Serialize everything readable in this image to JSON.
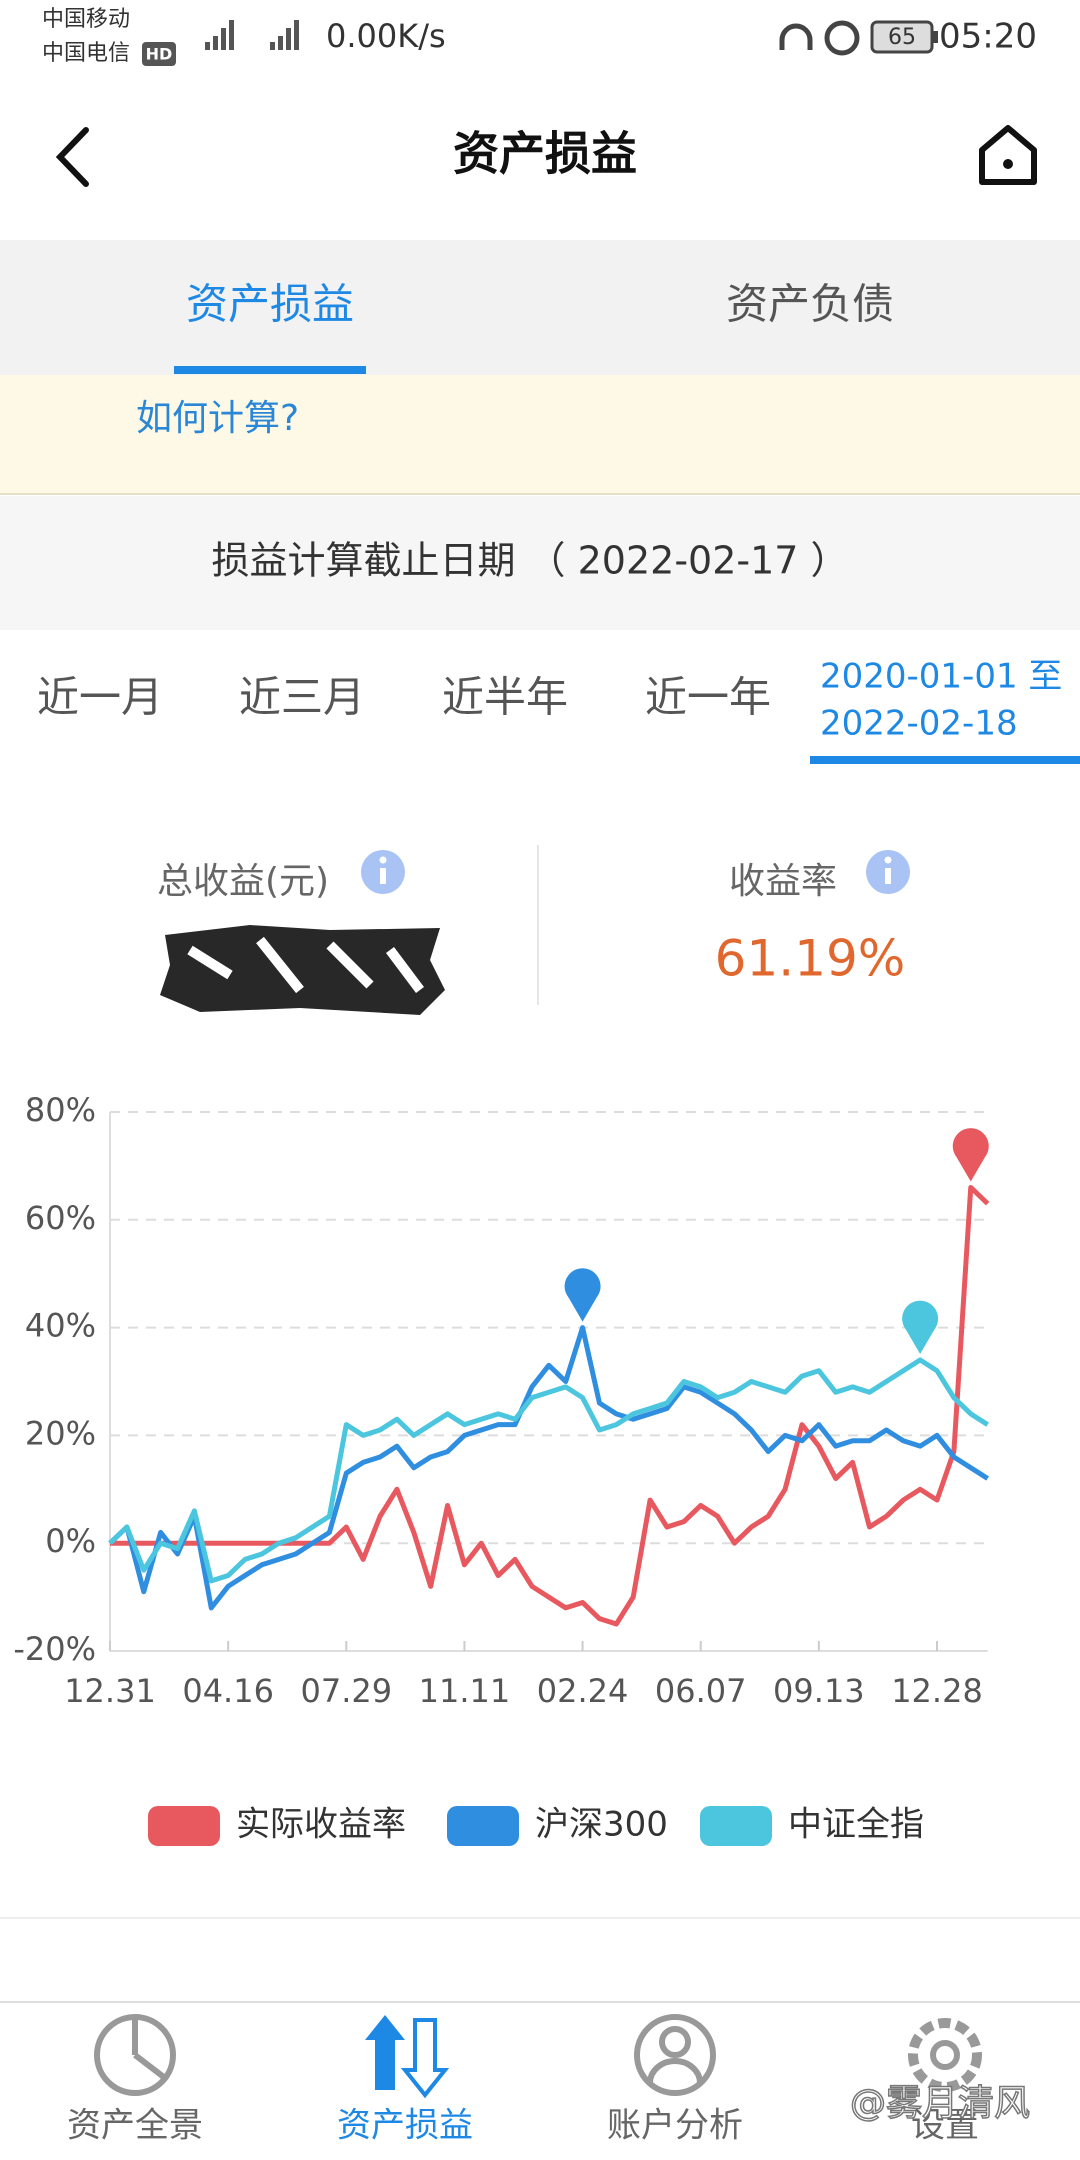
{
  "status_bar": {
    "carrier1": "中国移动",
    "carrier2": "中国电信",
    "hd": "HD",
    "speed": "0.00K/s",
    "battery": "65",
    "time": "05:20"
  },
  "header": {
    "title": "资产损益"
  },
  "tabs": [
    "资产损益",
    "资产负债"
  ],
  "notice": {
    "link": "如何计算?"
  },
  "cutoff": "损益计算截止日期 （ 2022-02-17 ）",
  "periods": [
    "近一月",
    "近三月",
    "近半年",
    "近一年"
  ],
  "custom_period": {
    "start": "2020-01-01 至",
    "end": "2022-02-18"
  },
  "stats": {
    "total_label": "总收益(元)",
    "rate_label": "收益率",
    "rate_value": "61.19%"
  },
  "chart_data": {
    "type": "line",
    "categories": [
      "12.31",
      null,
      null,
      null,
      null,
      null,
      null,
      "04.16",
      null,
      null,
      null,
      null,
      null,
      null,
      "07.29",
      null,
      null,
      null,
      null,
      null,
      null,
      "11.11",
      null,
      null,
      null,
      null,
      null,
      null,
      "02.24",
      null,
      null,
      null,
      null,
      null,
      null,
      "06.07",
      null,
      null,
      null,
      null,
      null,
      null,
      "09.13",
      null,
      null,
      null,
      null,
      null,
      null,
      "12.28",
      null,
      null,
      null
    ],
    "series": [
      {
        "name": "实际收益率",
        "color": "#e8585f",
        "values": [
          0,
          0,
          0,
          0,
          0,
          0,
          0,
          0,
          0,
          0,
          0,
          0,
          0,
          0,
          3,
          -3,
          5,
          10,
          2,
          -8,
          7,
          -4,
          0,
          -6,
          -3,
          -8,
          -10,
          -12,
          -11,
          -14,
          -15,
          -10,
          8,
          3,
          4,
          7,
          5,
          0,
          3,
          5,
          10,
          22,
          18,
          12,
          15,
          3,
          5,
          8,
          10,
          8,
          17,
          66,
          63
        ]
      },
      {
        "name": "沪深300",
        "color": "#2f8ee0",
        "values": [
          0,
          3,
          -9,
          2,
          -2,
          5,
          -12,
          -8,
          -6,
          -4,
          -3,
          -2,
          0,
          2,
          13,
          15,
          16,
          18,
          14,
          16,
          17,
          20,
          21,
          22,
          22,
          29,
          33,
          30,
          40,
          26,
          24,
          23,
          24,
          25,
          29,
          28,
          26,
          24,
          21,
          17,
          20,
          19,
          22,
          18,
          19,
          19,
          21,
          19,
          18,
          20,
          16,
          14,
          12
        ]
      },
      {
        "name": "中证全指",
        "color": "#4cc6de",
        "values": [
          0,
          3,
          -5,
          0,
          -1,
          6,
          -7,
          -6,
          -3,
          -2,
          0,
          1,
          3,
          5,
          22,
          20,
          21,
          23,
          20,
          22,
          24,
          22,
          23,
          24,
          23,
          27,
          28,
          29,
          27,
          21,
          22,
          24,
          25,
          26,
          30,
          29,
          27,
          28,
          30,
          29,
          28,
          31,
          32,
          28,
          29,
          28,
          30,
          32,
          34,
          32,
          27,
          24,
          22
        ]
      }
    ],
    "ylim": [
      -20,
      80
    ],
    "yticks": [
      {
        "value": -20,
        "label": "-20%"
      },
      {
        "value": 0,
        "label": "0%"
      },
      {
        "value": 20,
        "label": "20%"
      },
      {
        "value": 40,
        "label": "40%"
      },
      {
        "value": 60,
        "label": "60%"
      },
      {
        "value": 80,
        "label": "80%"
      }
    ],
    "grid": true,
    "legend": "bottom"
  },
  "nav": [
    "资产全景",
    "资产损益",
    "账户分析",
    "设置"
  ],
  "watermark": "@雾月清风"
}
